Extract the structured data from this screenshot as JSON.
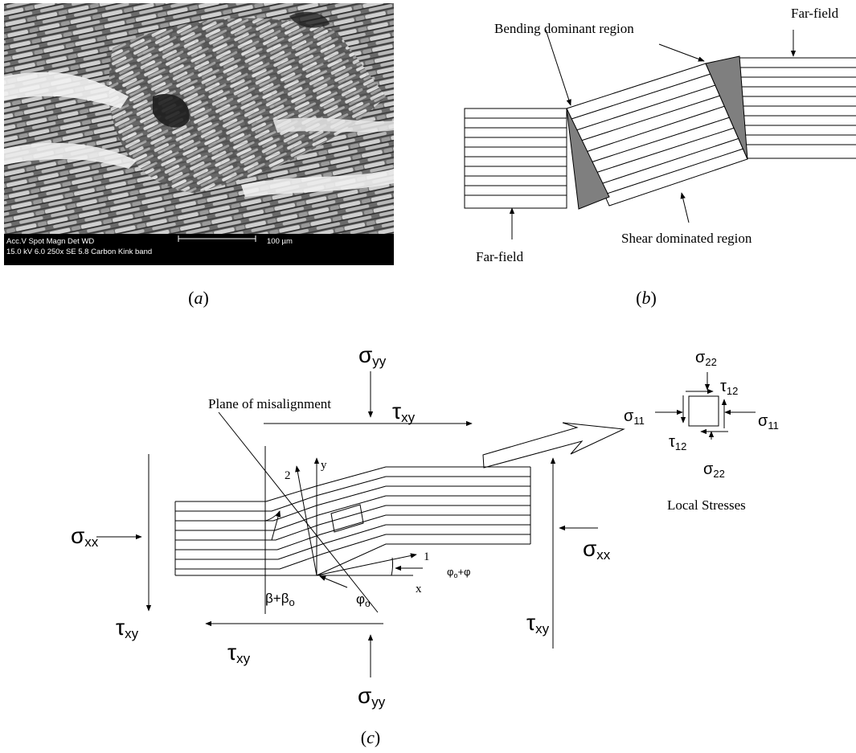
{
  "panel_a": {
    "sem_label_row1": "Acc.V  Spot Magn    Det  WD",
    "sem_label_row2": "15.0 kV 6.0   250x     SE    5.8   Carbon Kink band",
    "scale_label": "100 µm",
    "caption_open": "(",
    "caption_letter": "a",
    "caption_close": ")"
  },
  "panel_b": {
    "label_bending": "Bending dominant region",
    "label_farfield_top": "Far-field",
    "label_farfield_bottom": "Far-field",
    "label_shear": "Shear dominated region",
    "caption_open": "(",
    "caption_letter": "b",
    "caption_close": ")"
  },
  "panel_c": {
    "label_plane": "Plane of misalignment",
    "sigma": "σ",
    "tau": "τ",
    "sub_yy": "yy",
    "sub_xy": "xy",
    "sub_xx": "xx",
    "sub_22": "22",
    "sub_12": "12",
    "sub_11": "11",
    "axis_y": "y",
    "axis_x": "x",
    "axis_1": "1",
    "axis_2": "2",
    "angle_beta": "β+β",
    "sub_o": "o",
    "angle_phi": "φ",
    "angle_phi_sum": "φ",
    "angle_phi_sum_tail": "+φ",
    "label_local": "Local Stresses",
    "caption_open": "(",
    "caption_letter": "c",
    "caption_close": ")"
  }
}
